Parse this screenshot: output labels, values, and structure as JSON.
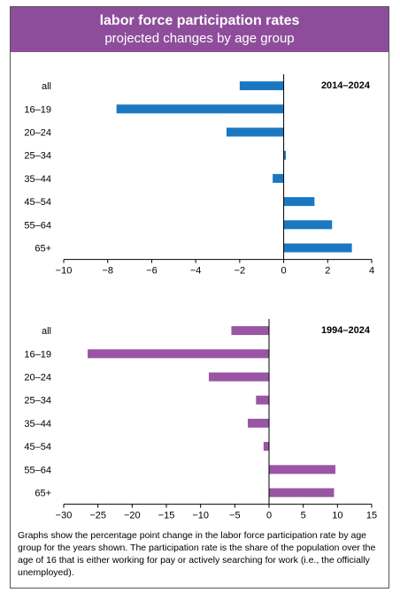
{
  "header": {
    "title": "labor force participation rates",
    "subtitle": "projected changes by age group"
  },
  "colors": {
    "header_bg": "#8e4d9b",
    "chart1_bar": "#1a78c2",
    "chart2_bar": "#9a55a4"
  },
  "chart_data": [
    {
      "type": "bar",
      "orientation": "horizontal",
      "period_label": "2014–2024",
      "categories": [
        "all",
        "16–19",
        "20–24",
        "25–34",
        "35–44",
        "45–54",
        "55–64",
        "65+"
      ],
      "values": [
        -2.0,
        -7.6,
        -2.6,
        0.1,
        -0.5,
        1.4,
        2.2,
        3.1
      ],
      "xlim": [
        -10,
        4
      ],
      "xticks": [
        "−10",
        "−8",
        "−6",
        "−4",
        "−2",
        "0",
        "2",
        "4"
      ],
      "color": "#1a78c2"
    },
    {
      "type": "bar",
      "orientation": "horizontal",
      "period_label": "1994–2024",
      "categories": [
        "all",
        "16–19",
        "20–24",
        "25–34",
        "35–44",
        "45–54",
        "55–64",
        "65+"
      ],
      "values": [
        -5.5,
        -26.5,
        -8.8,
        -1.9,
        -3.1,
        -0.8,
        9.7,
        9.5
      ],
      "xlim": [
        -30,
        15
      ],
      "xticks": [
        "−30",
        "−25",
        "−20",
        "−15",
        "−10",
        "−5",
        "0",
        "5",
        "10",
        "15"
      ],
      "color": "#9a55a4"
    }
  ],
  "caption": "Graphs show the percentage point change in the labor force participation rate by age group for the years shown. The participation rate is the share of the population over the age of 16 that is either working for pay or actively searching for work (i.e., the officially unemployed)."
}
